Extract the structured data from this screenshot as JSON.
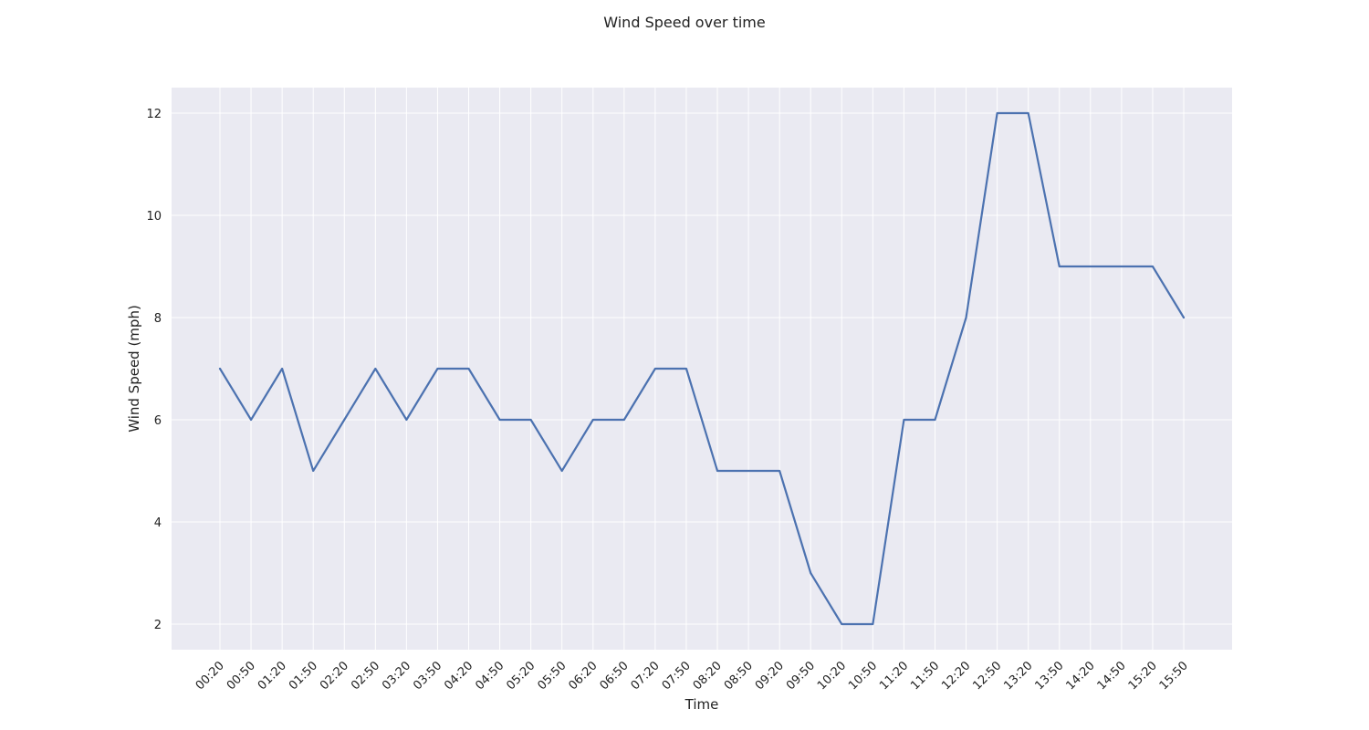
{
  "chart_data": {
    "type": "line",
    "title": "Wind Speed over time",
    "xlabel": "Time",
    "ylabel": "Wind Speed (mph)",
    "x": [
      "00:20",
      "00:50",
      "01:20",
      "01:50",
      "02:20",
      "02:50",
      "03:20",
      "03:50",
      "04:20",
      "04:50",
      "05:20",
      "05:50",
      "06:20",
      "06:50",
      "07:20",
      "07:50",
      "08:20",
      "08:50",
      "09:20",
      "09:50",
      "10:20",
      "10:50",
      "11:20",
      "11:50",
      "12:20",
      "12:50",
      "13:20",
      "13:50",
      "14:20",
      "14:50",
      "15:20",
      "15:50"
    ],
    "series": [
      {
        "values": [
          7,
          6,
          7,
          5,
          6,
          7,
          6,
          7,
          7,
          6,
          6,
          5,
          6,
          6,
          7,
          7,
          5,
          5,
          5,
          3,
          2,
          2,
          6,
          6,
          8,
          12,
          12,
          9,
          9,
          9,
          9,
          8
        ]
      }
    ],
    "y_ticks": [
      "2",
      "4",
      "6",
      "8",
      "10",
      "12"
    ],
    "ylim": [
      1.5,
      12.5
    ],
    "grid": true,
    "colors": {
      "line": "#4c72b0",
      "plot_background": "#eaeaf2",
      "grid": "#ffffff"
    }
  }
}
